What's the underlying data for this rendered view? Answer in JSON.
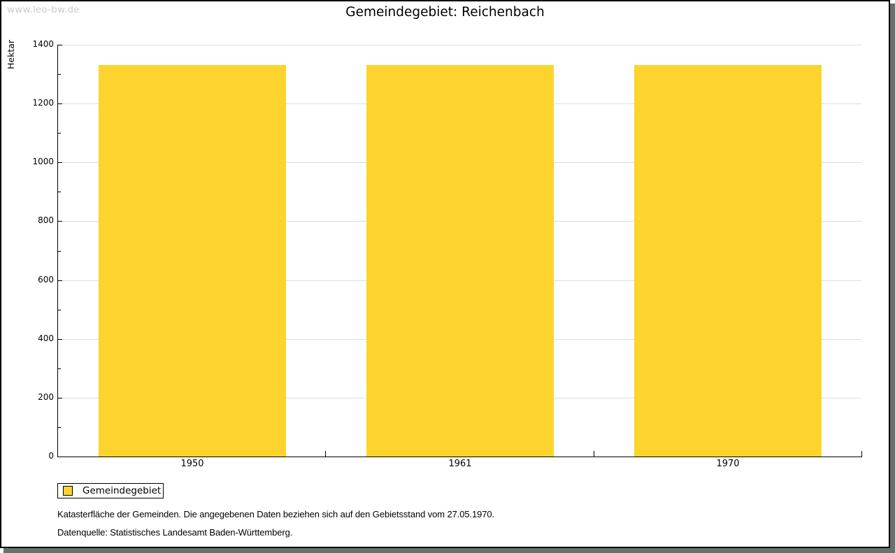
{
  "watermark": "www.leo-bw.de",
  "title": "Gemeindegebiet: Reichenbach",
  "legend": {
    "label": "Gemeindegebiet",
    "swatch_color": "#fcd42d"
  },
  "footnotes": [
    "Katasterfläche der Gemeinden. Die angegebenen Daten beziehen sich auf den Gebietsstand vom 27.05.1970.",
    "Datenquelle: Statistisches Landesamt Baden-Württemberg."
  ],
  "chart_data": {
    "type": "bar",
    "title": "Gemeindegebiet: Reichenbach",
    "categories": [
      "1950",
      "1961",
      "1970"
    ],
    "series": [
      {
        "name": "Gemeindegebiet",
        "values": [
          1330,
          1330,
          1330
        ]
      }
    ],
    "xlabel": "",
    "ylabel": "Hektar",
    "ylim": [
      0,
      1400
    ],
    "ytick_step": 200,
    "yminor_step": 100,
    "grid": true,
    "gridline_color": "#dddddd",
    "legend_position": "bottom-left",
    "bar_color": "#fcd42d"
  }
}
